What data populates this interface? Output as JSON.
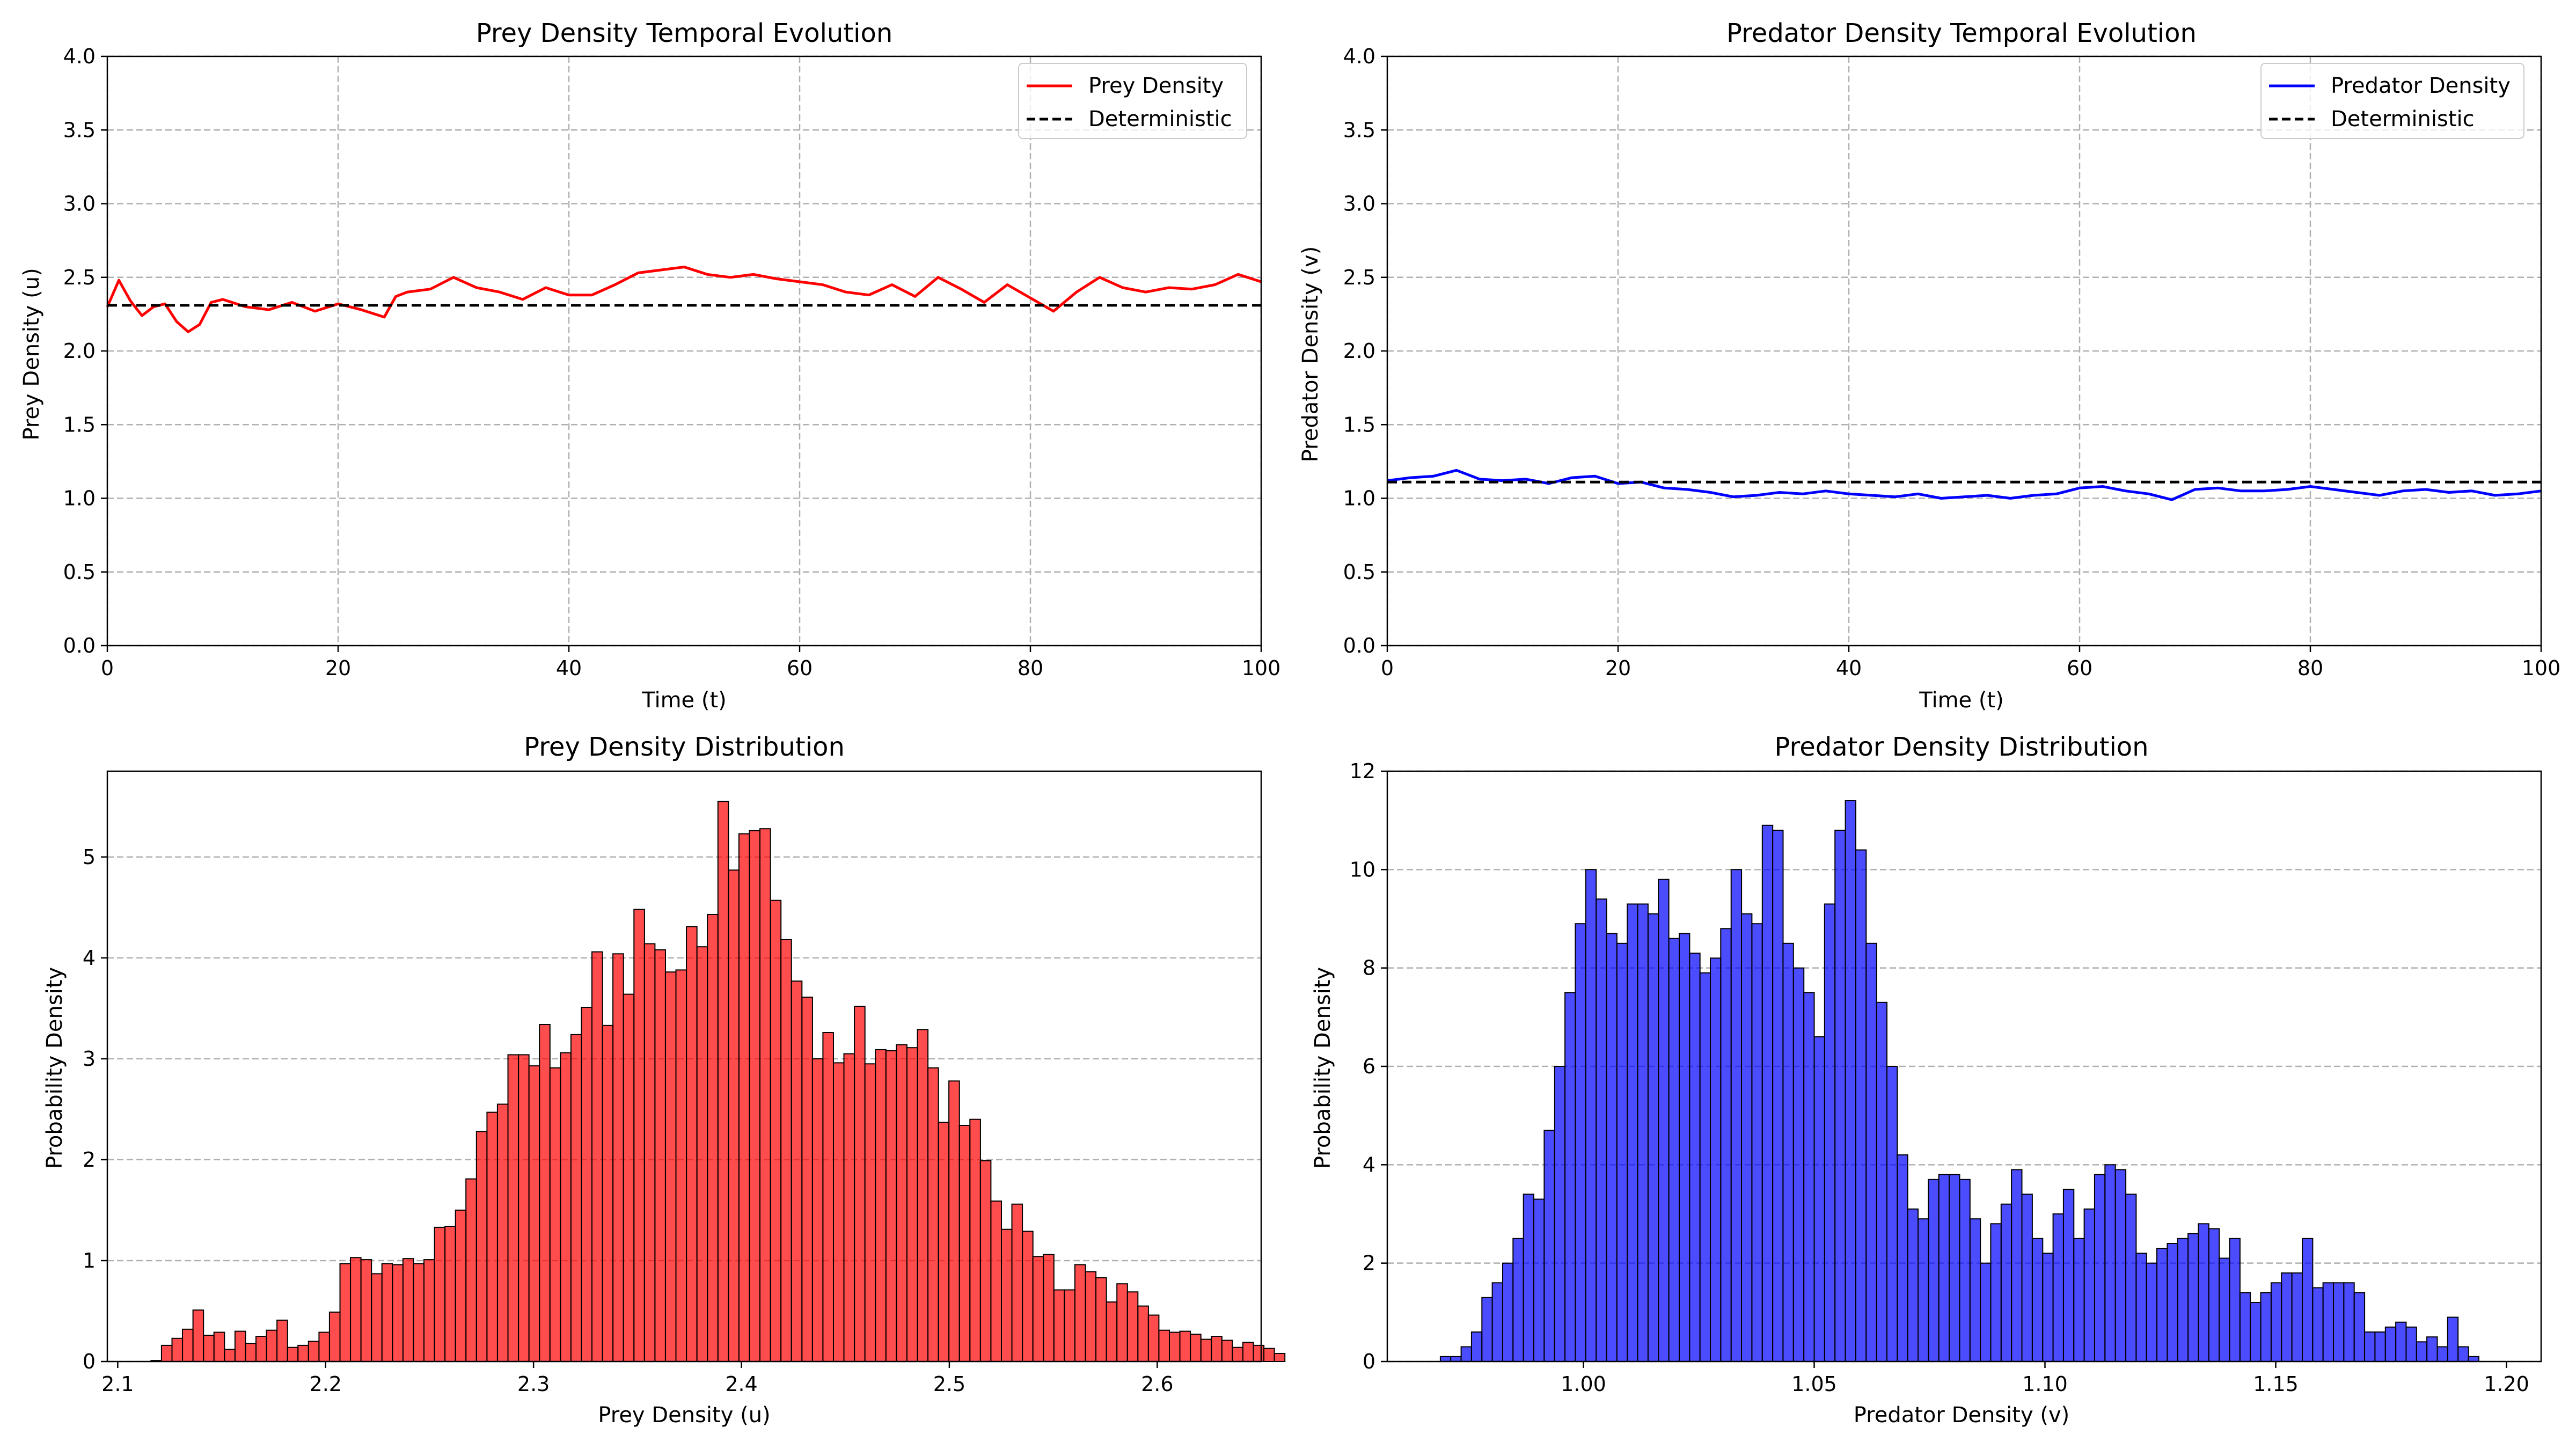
{
  "colors": {
    "prey": "#ff0000",
    "predator": "#0000ff",
    "deterministic": "#000000",
    "grid": "#b0b0b0"
  },
  "chart_data": [
    {
      "type": "line",
      "title": "Prey Density Temporal Evolution",
      "xlabel": "Time (t)",
      "ylabel": "Prey Density (u)",
      "xlim": [
        0,
        100
      ],
      "ylim": [
        0,
        4.0
      ],
      "xticks": [
        "0",
        "20",
        "40",
        "60",
        "80",
        "100"
      ],
      "yticks": [
        "0.0",
        "0.5",
        "1.0",
        "1.5",
        "2.0",
        "2.5",
        "3.0",
        "3.5",
        "4.0"
      ],
      "grid": true,
      "legend_position": "top-right",
      "series": [
        {
          "name": "Prey Density",
          "style": "solid",
          "color": "#ff0000",
          "x": [
            0,
            1,
            2,
            3,
            4,
            5,
            6,
            7,
            8,
            9,
            10,
            12,
            14,
            16,
            18,
            20,
            22,
            24,
            25,
            26,
            28,
            30,
            32,
            34,
            36,
            38,
            40,
            42,
            44,
            46,
            48,
            50,
            52,
            54,
            56,
            58,
            60,
            62,
            64,
            66,
            68,
            70,
            72,
            74,
            76,
            78,
            80,
            82,
            84,
            86,
            88,
            90,
            92,
            94,
            96,
            98,
            100
          ],
          "y": [
            2.3,
            2.48,
            2.34,
            2.24,
            2.3,
            2.32,
            2.2,
            2.13,
            2.18,
            2.33,
            2.35,
            2.3,
            2.28,
            2.33,
            2.27,
            2.32,
            2.28,
            2.23,
            2.37,
            2.4,
            2.42,
            2.5,
            2.43,
            2.4,
            2.35,
            2.43,
            2.38,
            2.38,
            2.45,
            2.53,
            2.55,
            2.57,
            2.52,
            2.5,
            2.52,
            2.49,
            2.47,
            2.45,
            2.4,
            2.38,
            2.45,
            2.37,
            2.5,
            2.42,
            2.33,
            2.45,
            2.36,
            2.27,
            2.4,
            2.5,
            2.43,
            2.4,
            2.43,
            2.42,
            2.45,
            2.52,
            2.47
          ]
        },
        {
          "name": "Deterministic",
          "style": "dashed",
          "color": "#000000",
          "x": [
            0,
            100
          ],
          "y": [
            2.31,
            2.31
          ]
        }
      ]
    },
    {
      "type": "line",
      "title": "Predator Density Temporal Evolution",
      "xlabel": "Time (t)",
      "ylabel": "Predator Density (v)",
      "xlim": [
        0,
        100
      ],
      "ylim": [
        0,
        4.0
      ],
      "xticks": [
        "0",
        "20",
        "40",
        "60",
        "80",
        "100"
      ],
      "yticks": [
        "0.0",
        "0.5",
        "1.0",
        "1.5",
        "2.0",
        "2.5",
        "3.0",
        "3.5",
        "4.0"
      ],
      "grid": true,
      "legend_position": "top-right",
      "series": [
        {
          "name": "Predator Density",
          "style": "solid",
          "color": "#0000ff",
          "x": [
            0,
            2,
            4,
            6,
            8,
            10,
            12,
            14,
            16,
            18,
            20,
            22,
            24,
            26,
            28,
            30,
            32,
            34,
            36,
            38,
            40,
            42,
            44,
            46,
            48,
            50,
            52,
            54,
            56,
            58,
            60,
            62,
            64,
            66,
            68,
            70,
            72,
            74,
            76,
            78,
            80,
            82,
            84,
            86,
            88,
            90,
            92,
            94,
            96,
            98,
            100
          ],
          "y": [
            1.12,
            1.14,
            1.15,
            1.19,
            1.13,
            1.12,
            1.13,
            1.1,
            1.14,
            1.15,
            1.1,
            1.11,
            1.07,
            1.06,
            1.04,
            1.01,
            1.02,
            1.04,
            1.03,
            1.05,
            1.03,
            1.02,
            1.01,
            1.03,
            1.0,
            1.01,
            1.02,
            1.0,
            1.02,
            1.03,
            1.07,
            1.08,
            1.05,
            1.03,
            0.99,
            1.06,
            1.07,
            1.05,
            1.05,
            1.06,
            1.08,
            1.06,
            1.04,
            1.02,
            1.05,
            1.06,
            1.04,
            1.05,
            1.02,
            1.03,
            1.05
          ]
        },
        {
          "name": "Deterministic",
          "style": "dashed",
          "color": "#000000",
          "x": [
            0,
            100
          ],
          "y": [
            1.11,
            1.11
          ]
        }
      ]
    },
    {
      "type": "bar",
      "subtype": "histogram",
      "title": "Prey Density Distribution",
      "xlabel": "Prey Density (u)",
      "ylabel": "Probability Density",
      "xlim": [
        2.095,
        2.65
      ],
      "ylim": [
        0,
        5.85
      ],
      "xticks": [
        "2.1",
        "2.2",
        "2.3",
        "2.4",
        "2.5",
        "2.6"
      ],
      "yticks": [
        "0",
        "1",
        "2",
        "3",
        "4",
        "5"
      ],
      "grid": true,
      "color": "#ff0000",
      "bin_start": 2.116,
      "bin_width": 0.00505,
      "values": [
        0.01,
        0.16,
        0.23,
        0.32,
        0.51,
        0.26,
        0.29,
        0.12,
        0.3,
        0.18,
        0.25,
        0.31,
        0.41,
        0.14,
        0.16,
        0.2,
        0.29,
        0.49,
        0.97,
        1.03,
        1.01,
        0.87,
        0.97,
        0.96,
        1.02,
        0.97,
        1.01,
        1.33,
        1.34,
        1.5,
        1.81,
        2.28,
        2.47,
        2.55,
        3.04,
        3.04,
        2.93,
        3.34,
        2.91,
        3.06,
        3.24,
        3.51,
        4.06,
        3.33,
        4.04,
        3.64,
        4.48,
        4.14,
        4.08,
        3.86,
        3.88,
        4.31,
        4.11,
        4.43,
        5.55,
        4.87,
        5.23,
        5.26,
        5.28,
        4.57,
        4.18,
        3.77,
        3.61,
        3.0,
        3.26,
        2.96,
        3.05,
        3.52,
        2.95,
        3.09,
        3.08,
        3.14,
        3.11,
        3.29,
        2.91,
        2.37,
        2.78,
        2.34,
        2.4,
        1.99,
        1.59,
        1.31,
        1.56,
        1.29,
        1.04,
        1.06,
        0.71,
        0.71,
        0.96,
        0.89,
        0.83,
        0.59,
        0.77,
        0.69,
        0.55,
        0.46,
        0.31,
        0.29,
        0.3,
        0.27,
        0.22,
        0.25,
        0.21,
        0.14,
        0.19,
        0.16,
        0.13,
        0.08
      ]
    },
    {
      "type": "bar",
      "subtype": "histogram",
      "title": "Predator Density Distribution",
      "xlabel": "Predator Density (v)",
      "ylabel": "Probability Density",
      "xlim": [
        0.9575,
        1.2075
      ],
      "ylim": [
        0,
        12
      ],
      "xticks": [
        "1.00",
        "1.05",
        "1.10",
        "1.15",
        "1.20"
      ],
      "yticks": [
        "0",
        "2",
        "4",
        "6",
        "8",
        "10",
        "12"
      ],
      "grid": true,
      "color": "#0000ff",
      "bin_start": 0.969,
      "bin_width": 0.00225,
      "values": [
        0.1,
        0.1,
        0.3,
        0.6,
        1.3,
        1.6,
        2.0,
        2.5,
        3.4,
        3.3,
        4.7,
        6.0,
        7.5,
        8.9,
        10.0,
        9.4,
        8.7,
        8.5,
        9.3,
        9.3,
        9.1,
        9.8,
        8.6,
        8.7,
        8.3,
        7.9,
        8.2,
        8.8,
        10.0,
        9.1,
        8.9,
        10.9,
        10.8,
        8.5,
        8.0,
        7.5,
        6.6,
        9.3,
        10.8,
        11.4,
        10.4,
        8.5,
        7.3,
        6.0,
        4.2,
        3.1,
        2.9,
        3.7,
        3.8,
        3.8,
        3.7,
        2.9,
        2.0,
        2.8,
        3.2,
        3.9,
        3.4,
        2.5,
        2.2,
        3.0,
        3.5,
        2.5,
        3.1,
        3.8,
        4.0,
        3.9,
        3.4,
        2.2,
        2.0,
        2.3,
        2.4,
        2.5,
        2.6,
        2.8,
        2.7,
        2.1,
        2.5,
        1.4,
        1.2,
        1.4,
        1.6,
        1.8,
        1.8,
        2.5,
        1.5,
        1.6,
        1.6,
        1.6,
        1.4,
        0.6,
        0.6,
        0.7,
        0.8,
        0.7,
        0.4,
        0.5,
        0.3,
        0.9,
        0.3,
        0.1
      ]
    }
  ]
}
